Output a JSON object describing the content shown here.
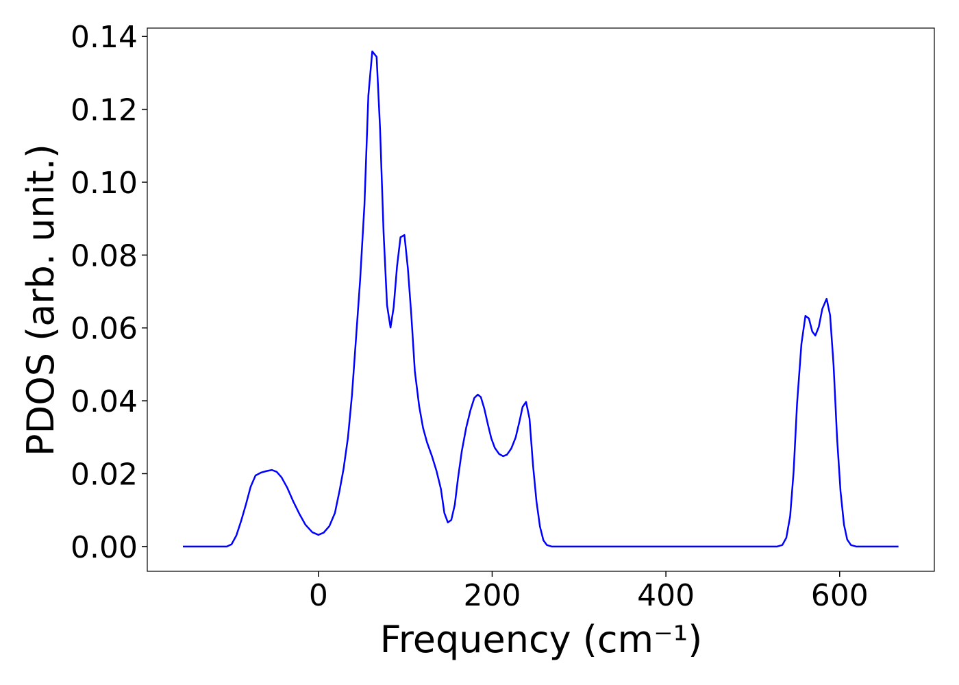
{
  "chart_data": {
    "type": "line",
    "xlabel": "Frequency (cm⁻¹)",
    "ylabel": "PDOS (arb. unit.)",
    "xlim": [
      -197,
      709
    ],
    "ylim": [
      -0.0068,
      0.1423
    ],
    "xticks": [
      0,
      200,
      400,
      600
    ],
    "yticks": [
      {
        "value": 0,
        "label": "0.00"
      },
      {
        "value": 0.02,
        "label": "0.02"
      },
      {
        "value": 0.04,
        "label": "0.04"
      },
      {
        "value": 0.06,
        "label": "0.06"
      },
      {
        "value": 0.08,
        "label": "0.08"
      },
      {
        "value": 0.1,
        "label": "0.10"
      },
      {
        "value": 0.12,
        "label": "0.12"
      },
      {
        "value": 0.14,
        "label": "0.14"
      }
    ],
    "x": [
      -156,
      -105.5,
      -100,
      -94.5,
      -89,
      -83.5,
      -78,
      -72.4,
      -66,
      -60,
      -53.5,
      -48,
      -42.5,
      -36,
      -29,
      -22,
      -15,
      -7,
      0,
      6,
      12.6,
      19,
      24.4,
      29,
      34,
      38.6,
      43,
      48,
      53,
      57.5,
      62,
      67,
      71,
      75,
      79,
      83,
      86.6,
      90.5,
      94.5,
      99,
      103,
      107,
      111,
      116,
      120.5,
      125,
      130.7,
      136,
      141,
      145,
      149,
      153,
      157,
      160.6,
      165,
      170,
      175,
      179.5,
      183.5,
      187,
      191,
      195,
      199,
      203,
      208,
      212.6,
      217,
      222,
      227,
      231.5,
      235,
      239,
      243,
      247,
      251,
      255,
      259,
      263,
      268.5,
      528,
      534,
      538.6,
      543,
      547,
      551,
      556,
      560.6,
      564.6,
      568.5,
      572,
      576,
      580,
      585,
      589,
      593,
      597,
      601,
      605,
      608.7,
      613,
      619,
      667.7
    ],
    "series": [
      {
        "color": "#0000ff",
        "values": [
          0,
          0,
          0.0006,
          0.003,
          0.007,
          0.0115,
          0.0164,
          0.0195,
          0.0203,
          0.0207,
          0.021,
          0.0205,
          0.019,
          0.0162,
          0.0124,
          0.009,
          0.006,
          0.0039,
          0.0032,
          0.0038,
          0.0056,
          0.0092,
          0.0154,
          0.0214,
          0.0299,
          0.0415,
          0.0562,
          0.0731,
          0.0938,
          0.1238,
          0.1359,
          0.1344,
          0.1145,
          0.0863,
          0.0662,
          0.0601,
          0.0656,
          0.0769,
          0.0849,
          0.0855,
          0.0763,
          0.0633,
          0.0481,
          0.0385,
          0.0325,
          0.0286,
          0.0248,
          0.0207,
          0.0158,
          0.0092,
          0.0066,
          0.0073,
          0.0115,
          0.0186,
          0.0261,
          0.0325,
          0.0374,
          0.0408,
          0.0417,
          0.041,
          0.0378,
          0.0336,
          0.0297,
          0.0271,
          0.0254,
          0.0248,
          0.0252,
          0.0269,
          0.0299,
          0.0344,
          0.0383,
          0.0397,
          0.0351,
          0.0224,
          0.0124,
          0.0055,
          0.0017,
          0.0004,
          0,
          0,
          0.0004,
          0.0024,
          0.0083,
          0.0205,
          0.0393,
          0.0556,
          0.0633,
          0.0626,
          0.059,
          0.0579,
          0.0603,
          0.0652,
          0.068,
          0.0635,
          0.0498,
          0.0299,
          0.0152,
          0.006,
          0.0019,
          0.0004,
          0,
          0
        ]
      }
    ]
  }
}
